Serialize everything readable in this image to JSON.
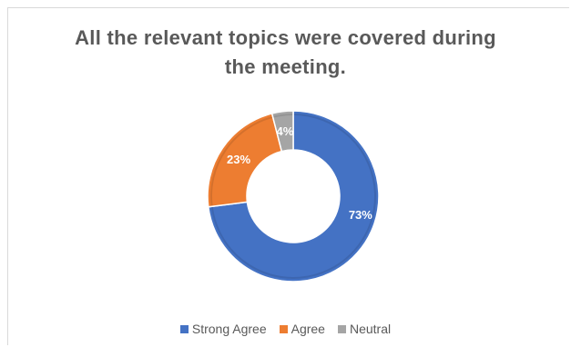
{
  "chart_data": {
    "type": "pie",
    "variant": "donut",
    "title": "All the relevant topics were covered during the meeting.",
    "title_lines": [
      "All the relevant topics were covered during",
      "the meeting."
    ],
    "categories": [
      "Strong Agree",
      "Agree",
      "Neutral"
    ],
    "values": [
      73,
      23,
      4
    ],
    "data_labels": [
      "73%",
      "23%",
      "4%"
    ],
    "colors": [
      "#4472c4",
      "#ed7d31",
      "#a5a5a5"
    ],
    "legend_position": "bottom"
  }
}
